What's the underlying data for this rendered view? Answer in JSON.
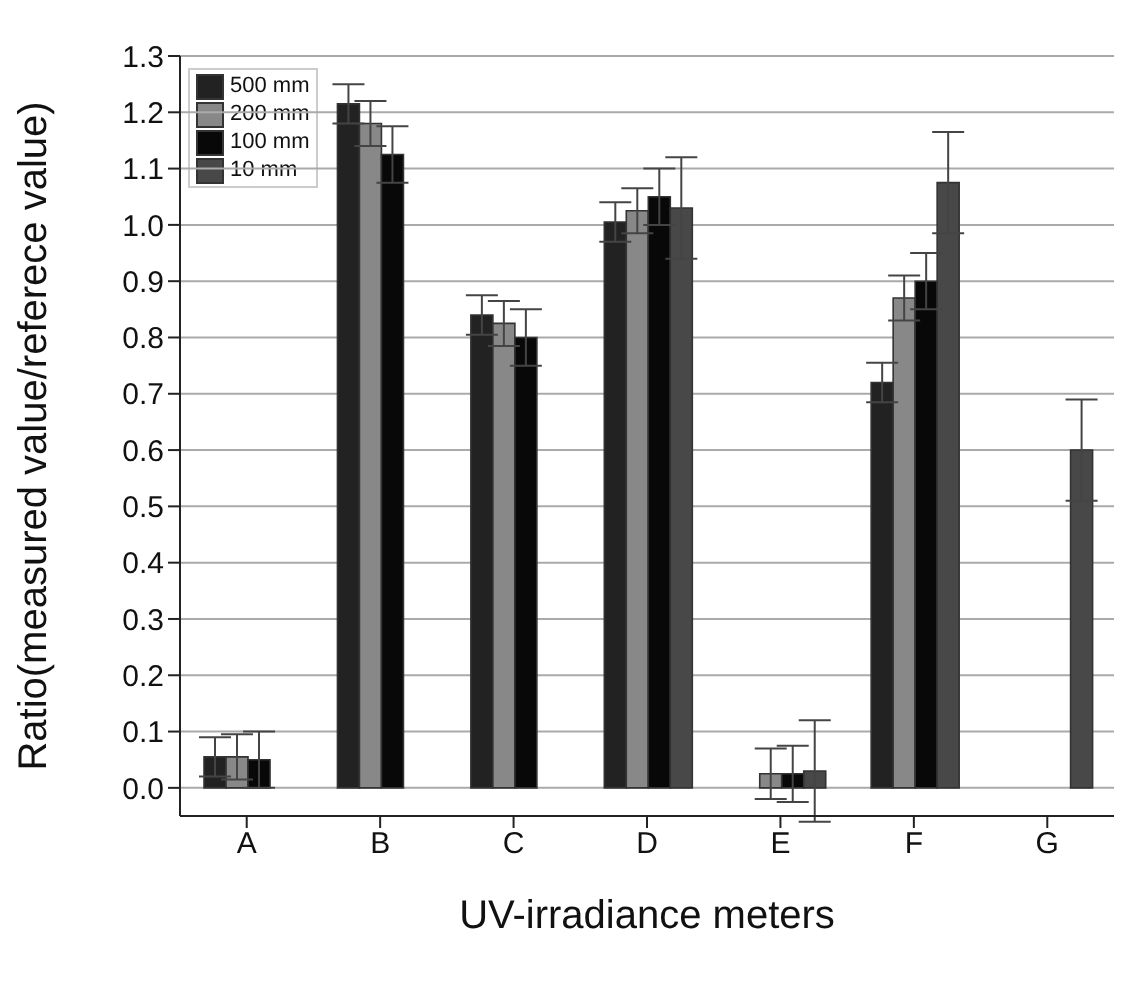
{
  "chart_data": {
    "type": "bar",
    "xlabel": "UV-irradiance meters",
    "ylabel": "Ratio(measured value/referece value)",
    "categories": [
      "A",
      "B",
      "C",
      "D",
      "E",
      "F",
      "G"
    ],
    "series": [
      {
        "name": "500 mm",
        "color": "#222222",
        "values": [
          0.055,
          1.215,
          0.84,
          1.005,
          null,
          0.72,
          null
        ],
        "errors": [
          0.035,
          0.035,
          0.035,
          0.035,
          null,
          0.035,
          null
        ]
      },
      {
        "name": "200 mm",
        "color": "#888888",
        "values": [
          0.055,
          1.18,
          0.825,
          1.025,
          0.025,
          0.87,
          null
        ],
        "errors": [
          0.04,
          0.04,
          0.04,
          0.04,
          0.045,
          0.04,
          null
        ]
      },
      {
        "name": "100 mm",
        "color": "#080808",
        "values": [
          0.05,
          1.125,
          0.8,
          1.05,
          0.025,
          0.9,
          null
        ],
        "errors": [
          0.05,
          0.05,
          0.05,
          0.05,
          0.05,
          0.05,
          null
        ]
      },
      {
        "name": "10 mm",
        "color": "#484848",
        "values": [
          null,
          null,
          null,
          1.03,
          0.03,
          1.075,
          0.6
        ],
        "errors": [
          null,
          null,
          null,
          0.09,
          0.09,
          0.09,
          0.09
        ]
      }
    ],
    "ylim": [
      -0.05,
      1.3
    ],
    "yticks": [
      {
        "value": 0,
        "label": "0.0"
      },
      0.1,
      0.2,
      0.3,
      0.4,
      0.5,
      0.6,
      0.7,
      0.8,
      0.9,
      {
        "value": 1,
        "label": "1.0"
      },
      1.1,
      1.2,
      1.3
    ],
    "grid": "y",
    "legend": "top left"
  }
}
